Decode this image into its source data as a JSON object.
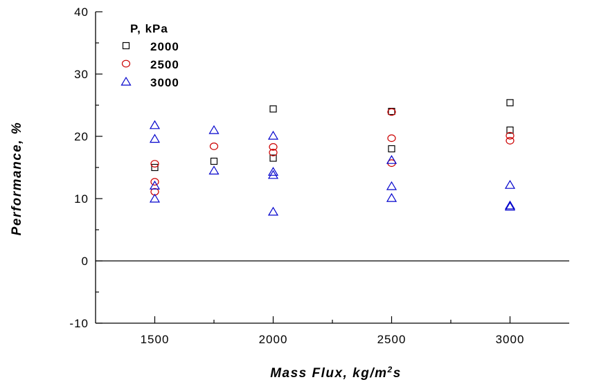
{
  "chart_data": {
    "type": "scatter",
    "xlabel": "Mass Flux, kg/m",
    "xlabel_sup": "2",
    "xlabel_end": "s",
    "ylabel": "Performance, %",
    "xlim": [
      1250,
      3250
    ],
    "ylim": [
      -10,
      40
    ],
    "x_ticks": [
      1500,
      2000,
      2500,
      3000
    ],
    "y_ticks": [
      -10,
      0,
      10,
      20,
      30,
      40
    ],
    "zero_line": true,
    "grid": false,
    "legend": {
      "title": "P, kPa",
      "placement": "top-left"
    },
    "series": [
      {
        "name": "2000",
        "marker": "square",
        "color": "#000000",
        "points": [
          [
            1500,
            15.0
          ],
          [
            1750,
            16.0
          ],
          [
            2000,
            16.5
          ],
          [
            2000,
            24.4
          ],
          [
            2500,
            18.0
          ],
          [
            2500,
            24.0
          ],
          [
            3000,
            21.0
          ],
          [
            3000,
            25.4
          ]
        ]
      },
      {
        "name": "2500",
        "marker": "circle",
        "color": "#cc0000",
        "points": [
          [
            1500,
            15.6
          ],
          [
            1500,
            12.7
          ],
          [
            1500,
            11.1
          ],
          [
            1750,
            18.4
          ],
          [
            2000,
            18.3
          ],
          [
            2000,
            17.4
          ],
          [
            2500,
            23.9
          ],
          [
            2500,
            19.7
          ],
          [
            2500,
            15.7
          ],
          [
            3000,
            20.1
          ],
          [
            3000,
            19.3
          ]
        ]
      },
      {
        "name": "3000",
        "marker": "triangle",
        "color": "#0000cc",
        "points": [
          [
            1500,
            21.8
          ],
          [
            1500,
            19.6
          ],
          [
            1500,
            12.1
          ],
          [
            1500,
            10.0
          ],
          [
            1750,
            21.0
          ],
          [
            1750,
            14.5
          ],
          [
            2000,
            20.1
          ],
          [
            2000,
            14.3
          ],
          [
            2000,
            13.8
          ],
          [
            2000,
            7.9
          ],
          [
            2500,
            16.2
          ],
          [
            2500,
            12.0
          ],
          [
            2500,
            10.1
          ],
          [
            3000,
            12.2
          ],
          [
            3000,
            8.9
          ],
          [
            3000,
            8.7
          ]
        ]
      }
    ]
  }
}
